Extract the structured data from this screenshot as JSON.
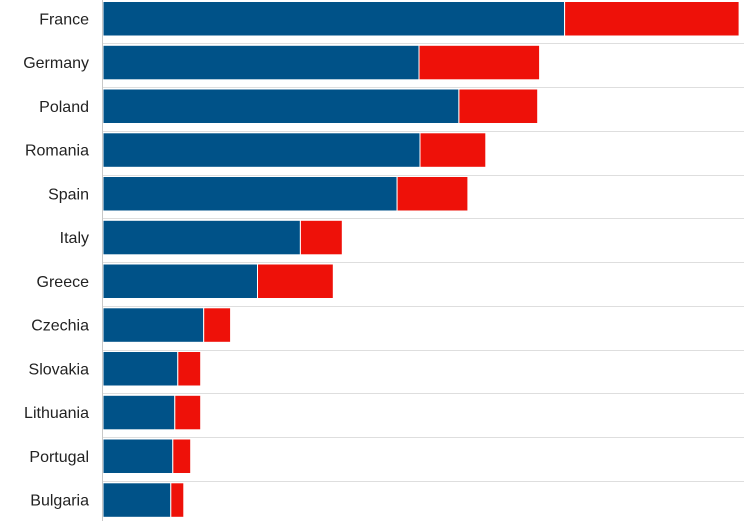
{
  "chart_data": {
    "type": "bar",
    "orientation": "horizontal",
    "stacked": true,
    "categories": [
      "France",
      "Germany",
      "Poland",
      "Romania",
      "Spain",
      "Italy",
      "Greece",
      "Czechia",
      "Slovakia",
      "Lithuania",
      "Portugal",
      "Bulgaria"
    ],
    "series": [
      {
        "color": "#005288",
        "values": [
          463,
          317,
          357,
          318,
          295,
          198,
          155,
          101,
          75,
          72,
          70,
          68
        ]
      },
      {
        "color": "#ee1109",
        "values": [
          175,
          121,
          79,
          66,
          71,
          42,
          76,
          27,
          23,
          26,
          18,
          13
        ]
      }
    ],
    "xlim": [
      0,
      640
    ],
    "grid": true,
    "legend": "none",
    "title": "",
    "xlabel": "",
    "ylabel": ""
  }
}
